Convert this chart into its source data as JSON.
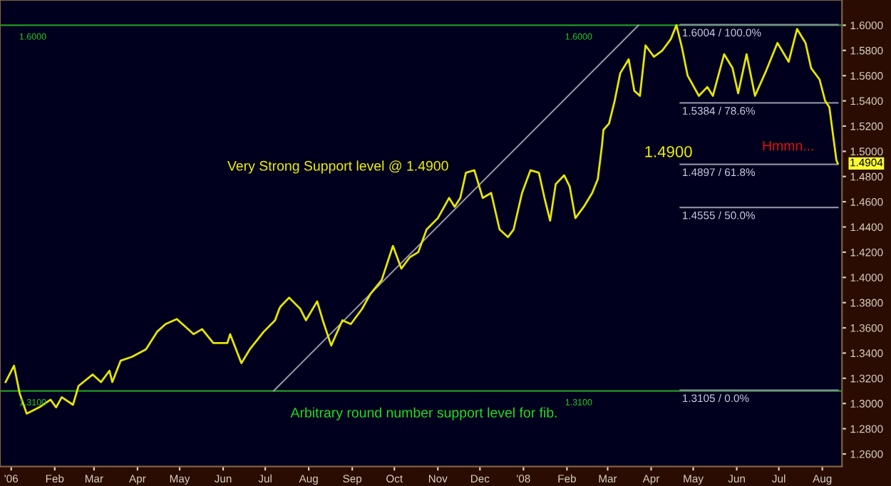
{
  "chart_data": {
    "type": "line",
    "x": [
      "2006-12-28",
      "2007-01-03",
      "2007-01-07",
      "2007-01-12",
      "2007-01-21",
      "2007-01-29",
      "2007-02-02",
      "2007-02-06",
      "2007-02-14",
      "2007-02-18",
      "2007-02-28",
      "2007-03-06",
      "2007-03-12",
      "2007-03-14",
      "2007-03-20",
      "2007-03-28",
      "2007-04-07",
      "2007-04-15",
      "2007-04-21",
      "2007-04-29",
      "2007-05-05",
      "2007-05-11",
      "2007-05-17",
      "2007-05-25",
      "2007-06-04",
      "2007-06-06",
      "2007-06-14",
      "2007-06-20",
      "2007-06-30",
      "2007-07-08",
      "2007-07-11",
      "2007-07-12",
      "2007-07-18",
      "2007-07-26",
      "2007-07-30",
      "2007-08-07",
      "2007-08-11",
      "2007-08-17",
      "2007-08-25",
      "2007-08-31",
      "2007-09-08",
      "2007-09-14",
      "2007-09-22",
      "2007-09-30",
      "2007-10-06",
      "2007-10-12",
      "2007-10-18",
      "2007-10-24",
      "2007-11-01",
      "2007-11-09",
      "2007-11-13",
      "2007-11-17",
      "2007-11-21",
      "2007-11-27",
      "2007-12-03",
      "2007-12-09",
      "2007-12-15",
      "2007-12-21",
      "2007-12-25",
      "2007-12-31",
      "2008-01-06",
      "2008-01-12",
      "2008-01-16",
      "2008-01-20",
      "2008-01-24",
      "2008-01-30",
      "2008-02-03",
      "2008-02-07",
      "2008-02-13",
      "2008-02-19",
      "2008-02-23",
      "2008-02-26",
      "2008-02-27",
      "2008-03-02",
      "2008-03-06",
      "2008-03-10",
      "2008-03-16",
      "2008-03-20",
      "2008-03-24",
      "2008-03-28",
      "2008-04-03",
      "2008-04-09",
      "2008-04-15",
      "2008-04-19",
      "2008-04-23",
      "2008-04-27",
      "2008-05-05",
      "2008-05-11",
      "2008-05-15",
      "2008-05-23",
      "2008-05-29",
      "2008-06-02",
      "2008-06-08",
      "2008-06-14",
      "2008-06-22",
      "2008-06-30",
      "2008-07-08",
      "2008-07-14",
      "2008-07-20",
      "2008-07-24",
      "2008-07-30",
      "2008-08-03",
      "2008-08-06",
      "2008-08-11",
      "2008-08-12"
    ],
    "series": [
      {
        "color": "#e6e600",
        "values": [
          1.317,
          1.33,
          1.308,
          1.292,
          1.297,
          1.303,
          1.297,
          1.305,
          1.299,
          1.314,
          1.323,
          1.317,
          1.326,
          1.317,
          1.334,
          1.337,
          1.343,
          1.357,
          1.363,
          1.367,
          1.361,
          1.355,
          1.359,
          1.348,
          1.348,
          1.355,
          1.332,
          1.343,
          1.357,
          1.366,
          1.375,
          1.377,
          1.384,
          1.375,
          1.366,
          1.381,
          1.366,
          1.346,
          1.366,
          1.363,
          1.375,
          1.387,
          1.398,
          1.425,
          1.407,
          1.416,
          1.42,
          1.438,
          1.447,
          1.463,
          1.456,
          1.463,
          1.483,
          1.485,
          1.463,
          1.467,
          1.438,
          1.432,
          1.438,
          1.467,
          1.485,
          1.483,
          1.463,
          1.445,
          1.474,
          1.481,
          1.472,
          1.447,
          1.456,
          1.467,
          1.478,
          1.505,
          1.517,
          1.522,
          1.54,
          1.562,
          1.573,
          1.548,
          1.544,
          1.584,
          1.575,
          1.58,
          1.589,
          1.6,
          1.582,
          1.56,
          1.544,
          1.551,
          1.544,
          1.577,
          1.566,
          1.546,
          1.577,
          1.544,
          1.564,
          1.586,
          1.571,
          1.597,
          1.586,
          1.566,
          1.557,
          1.54,
          1.535,
          1.493,
          1.4904
        ],
        "value_labels": [
          null,
          null,
          null,
          null,
          null,
          null,
          null,
          null,
          null,
          null,
          null,
          null,
          null,
          null,
          null,
          null,
          null,
          null,
          null,
          null,
          null,
          null,
          null,
          null,
          null,
          null,
          null,
          null,
          null,
          null,
          null,
          null,
          null,
          null,
          null,
          null,
          null,
          null,
          null,
          null,
          null,
          null,
          null,
          null,
          null,
          null,
          null,
          null,
          null,
          null,
          null,
          null,
          null,
          null,
          null,
          null,
          null,
          null,
          null,
          null,
          null,
          null,
          null,
          null,
          null,
          null,
          null,
          null,
          null,
          null,
          null,
          null,
          null,
          null,
          null,
          null,
          null,
          null,
          null,
          null,
          null,
          null,
          null,
          null,
          null,
          null,
          null,
          null,
          null,
          null,
          null,
          null,
          null,
          null,
          null,
          null,
          null,
          null,
          null,
          null,
          null,
          null,
          null,
          null,
          "1.4904"
        ]
      },
      {
        "type": "line",
        "color": "#9a9aaa",
        "x": [
          "2007-07-07",
          "2008-03-23"
        ],
        "values": [
          1.31,
          1.6
        ]
      }
    ],
    "xlim": [
      "2006-12-24",
      "2008-08-15"
    ],
    "xticks": [
      {
        "value": "2007-01-01",
        "label": "'06"
      },
      {
        "value": "2007-02-01",
        "label": "Feb"
      },
      {
        "value": "2007-03-01",
        "label": "Mar"
      },
      {
        "value": "2007-04-01",
        "label": "Apr"
      },
      {
        "value": "2007-05-01",
        "label": "May"
      },
      {
        "value": "2007-06-01",
        "label": "Jun"
      },
      {
        "value": "2007-07-01",
        "label": "Jul"
      },
      {
        "value": "2007-08-01",
        "label": "Aug"
      },
      {
        "value": "2007-09-01",
        "label": "Sep"
      },
      {
        "value": "2007-10-01",
        "label": "Oct"
      },
      {
        "value": "2007-11-01",
        "label": "Nov"
      },
      {
        "value": "2007-12-01",
        "label": "Dec"
      },
      {
        "value": "2008-01-01",
        "label": "'08"
      },
      {
        "value": "2008-02-01",
        "label": "Feb"
      },
      {
        "value": "2008-03-01",
        "label": "Mar"
      },
      {
        "value": "2008-04-01",
        "label": "Apr"
      },
      {
        "value": "2008-05-01",
        "label": "May"
      },
      {
        "value": "2008-06-01",
        "label": "Jun"
      },
      {
        "value": "2008-07-01",
        "label": "Jul"
      },
      {
        "value": "2008-08-01",
        "label": "Aug"
      }
    ],
    "ylim": [
      1.25,
      1.62
    ],
    "yticks": [
      {
        "value": 1.26,
        "label": "1.2600"
      },
      {
        "value": 1.28,
        "label": "1.2800"
      },
      {
        "value": 1.3,
        "label": "1.3000"
      },
      {
        "value": 1.32,
        "label": "1.3200"
      },
      {
        "value": 1.34,
        "label": "1.3400"
      },
      {
        "value": 1.36,
        "label": "1.3600"
      },
      {
        "value": 1.38,
        "label": "1.3800"
      },
      {
        "value": 1.4,
        "label": "1.4000"
      },
      {
        "value": 1.42,
        "label": "1.4200"
      },
      {
        "value": 1.44,
        "label": "1.4400"
      },
      {
        "value": 1.46,
        "label": "1.4600"
      },
      {
        "value": 1.48,
        "label": "1.4800"
      },
      {
        "value": 1.5,
        "label": "1.5000"
      },
      {
        "value": 1.52,
        "label": "1.5200"
      },
      {
        "value": 1.54,
        "label": "1.5400"
      },
      {
        "value": 1.56,
        "label": "1.5600"
      },
      {
        "value": 1.58,
        "label": "1.5800"
      },
      {
        "value": 1.6,
        "label": "1.6000"
      }
    ],
    "ref_lines": [
      {
        "axis": "y",
        "value": 1.6,
        "color": "#1f9a1f"
      },
      {
        "axis": "y",
        "value": 1.31,
        "color": "#1f9a1f"
      },
      {
        "axis": "y",
        "value": 1.6004,
        "label": "1.6004 / 100.0%",
        "color": "#8c8ca0"
      },
      {
        "axis": "y",
        "value": 1.5384,
        "label": "1.5384 / 78.6%",
        "color": "#8c8ca0"
      },
      {
        "axis": "y",
        "value": 1.4897,
        "label": "1.4897 / 61.8%",
        "color": "#8c8ca0"
      },
      {
        "axis": "y",
        "value": 1.4555,
        "label": "1.4555 / 50.0%",
        "color": "#8c8ca0"
      },
      {
        "axis": "y",
        "value": 1.3105,
        "label": "1.3105 / 0.0%",
        "color": "#8c8ca0"
      }
    ],
    "annotations": [
      {
        "text": "1.6000",
        "x": "2007-01-01",
        "y": 1.6
      },
      {
        "text": "1.6000",
        "x": "2008-01-25",
        "y": 1.6
      },
      {
        "text": "1.3100",
        "x": "2007-01-01",
        "y": 1.31
      },
      {
        "text": "1.3100",
        "x": "2008-01-25",
        "y": 1.31
      },
      "Very Strong Support level @ 1.4900",
      "1.4900",
      "Hmmn...",
      "Arbitrary round number support level for fib."
    ],
    "grid": false,
    "legend": false
  }
}
